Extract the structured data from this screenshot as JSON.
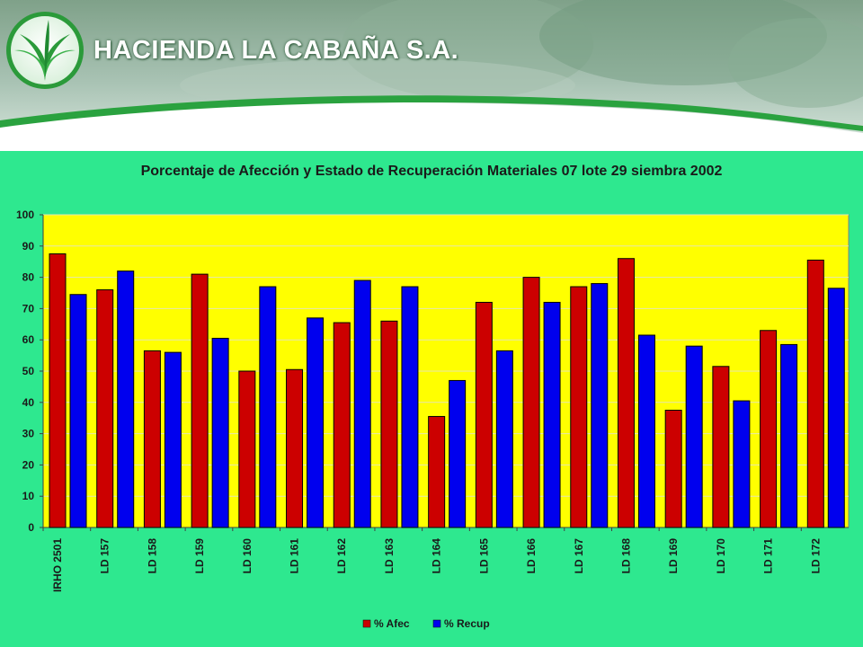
{
  "header": {
    "company_name": "HACIENDA LA CABAÑA S.A.",
    "logo_icon": "palm-leaf-logo-icon"
  },
  "colors": {
    "slide_background": "#2ee88f",
    "plot_background": "#ffff00",
    "afec": "#cc0000",
    "recup": "#0000ee"
  },
  "chart_data": {
    "type": "bar",
    "title": "Porcentaje de Afección y Estado de Recuperación  Materiales 07 lote 29 siembra 2002",
    "xlabel": "",
    "ylabel": "",
    "ylim": [
      0,
      100
    ],
    "yticks": [
      0,
      10,
      20,
      30,
      40,
      50,
      60,
      70,
      80,
      90,
      100
    ],
    "grid": true,
    "legend_position": "bottom",
    "categories": [
      "IRHO 2501",
      "LD 157",
      "LD 158",
      "LD 159",
      "LD 160",
      "LD 161",
      "LD 162",
      "LD 163",
      "LD 164",
      "LD 165",
      "LD 166",
      "LD 167",
      "LD 168",
      "LD 169",
      "LD 170",
      "LD 171",
      "LD 172"
    ],
    "series": [
      {
        "name": "% Afec",
        "color": "#cc0000",
        "values": [
          87.5,
          76,
          56.5,
          81,
          50,
          50.5,
          65.5,
          66,
          35.5,
          72,
          80,
          77,
          86,
          37.5,
          51.5,
          63,
          85.5
        ]
      },
      {
        "name": "% Recup",
        "color": "#0000ee",
        "values": [
          74.5,
          82,
          56,
          60.5,
          77,
          67,
          79,
          77,
          47,
          56.5,
          72,
          78,
          61.5,
          58,
          40.5,
          58.5,
          76.5
        ]
      }
    ]
  }
}
